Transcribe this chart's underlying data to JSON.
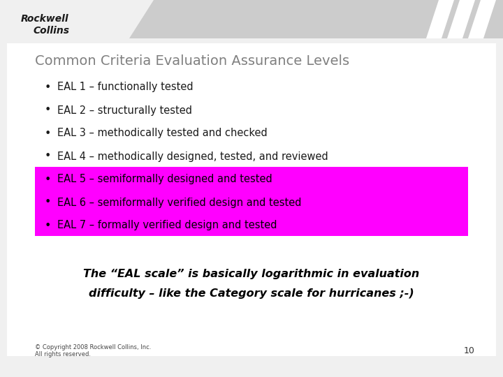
{
  "title": "Common Criteria Evaluation Assurance Levels",
  "title_color": "#808080",
  "title_fontsize": 14,
  "background_color": "#f0f0f0",
  "header_bg_color": "#d0d0d0",
  "bullet_items": [
    "EAL 1 – functionally tested",
    "EAL 2 – structurally tested",
    "EAL 3 – methodically tested and checked",
    "EAL 4 – methodically designed, tested, and reviewed",
    "EAL 5 – semiformally designed and tested",
    "EAL 6 – semiformally verified design and tested",
    "EAL 7 – formally verified design and tested"
  ],
  "highlight_items": [
    4,
    5,
    6
  ],
  "highlight_color": "#ff00ff",
  "highlight_text_color": "#000000",
  "normal_text_color": "#1a1a1a",
  "bullet_fontsize": 10.5,
  "footnote_line1": "© Copyright 2008 Rockwell Collins, Inc.",
  "footnote_line2": "All rights reserved.",
  "page_number": "10",
  "italic_note_line1": "The “EAL scale” is basically logarithmic in evaluation",
  "italic_note_line2": "difficulty – like the Category scale for hurricanes ;-)",
  "italic_note_fontsize": 11.5,
  "logo_text_line1": "Rockwell",
  "logo_text_line2": "Collins",
  "rockwell_color": "#1a1a1a",
  "stripe_color": "#ffffff",
  "header_color": "#cccccc"
}
